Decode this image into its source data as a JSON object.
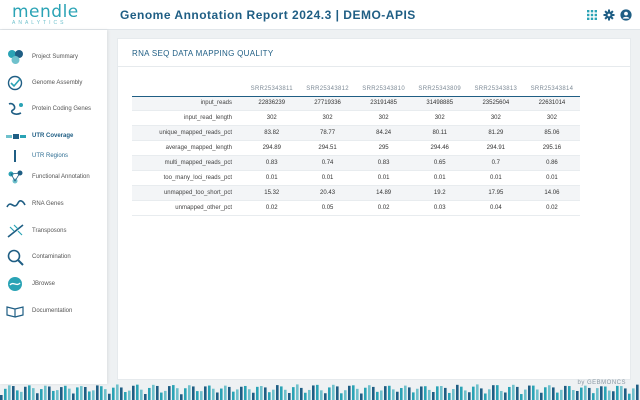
{
  "header": {
    "brand": "mendle",
    "brand_sub": "ANALYTICS",
    "title": "Genome Annotation Report 2024.3 | DEMO-APIS",
    "icons": [
      "grid-icon",
      "gear-icon",
      "user-icon"
    ],
    "accent": "#2aa3b5",
    "title_color": "#1f5e84"
  },
  "sidebar": {
    "items": [
      {
        "label": "Project Summary",
        "icon": "summary-icon"
      },
      {
        "label": "Genome Assembly",
        "icon": "assembly-icon"
      },
      {
        "label": "Protein Coding Genes",
        "icon": "protein-icon"
      },
      {
        "label": "UTR Coverage",
        "icon": "utr-coverage-icon",
        "active": true
      },
      {
        "label": "UTR Regions",
        "icon": "utr-regions-icon",
        "sub": true
      },
      {
        "label": "Functional Annotation",
        "icon": "functional-icon"
      },
      {
        "label": "RNA Genes",
        "icon": "rna-icon"
      },
      {
        "label": "Transposons",
        "icon": "transposon-icon"
      },
      {
        "label": "Contamination",
        "icon": "contamination-icon"
      },
      {
        "label": "JBrowse",
        "icon": "jbrowse-icon"
      },
      {
        "label": "Documentation",
        "icon": "documentation-icon"
      }
    ]
  },
  "main": {
    "section_title": "RNA SEQ DATA MAPPING QUALITY",
    "columns": [
      "SRR25343811",
      "SRR25343812",
      "SRR25343810",
      "SRR25343809",
      "SRR25343813",
      "SRR25343814"
    ],
    "rows": [
      {
        "metric": "input_reads",
        "values": [
          "22836239",
          "27719336",
          "23191485",
          "31498885",
          "23525604",
          "22631014"
        ]
      },
      {
        "metric": "input_read_length",
        "values": [
          "302",
          "302",
          "302",
          "302",
          "302",
          "302"
        ]
      },
      {
        "metric": "unique_mapped_reads_pct",
        "values": [
          "83.82",
          "78.77",
          "84.24",
          "80.11",
          "81.29",
          "85.06"
        ]
      },
      {
        "metric": "average_mapped_length",
        "values": [
          "294.89",
          "294.51",
          "295",
          "294.46",
          "294.91",
          "295.16"
        ]
      },
      {
        "metric": "multi_mapped_reads_pct",
        "values": [
          "0.83",
          "0.74",
          "0.83",
          "0.65",
          "0.7",
          "0.86"
        ]
      },
      {
        "metric": "too_many_loci_reads_pct",
        "values": [
          "0.01",
          "0.01",
          "0.01",
          "0.01",
          "0.01",
          "0.01"
        ]
      },
      {
        "metric": "unmapped_too_short_pct",
        "values": [
          "15.32",
          "20.43",
          "14.89",
          "19.2",
          "17.95",
          "14.06"
        ]
      },
      {
        "metric": "unmapped_other_pct",
        "values": [
          "0.02",
          "0.05",
          "0.02",
          "0.03",
          "0.04",
          "0.02"
        ]
      }
    ]
  },
  "footer": {
    "powered_by": "by GEBMONCS"
  }
}
